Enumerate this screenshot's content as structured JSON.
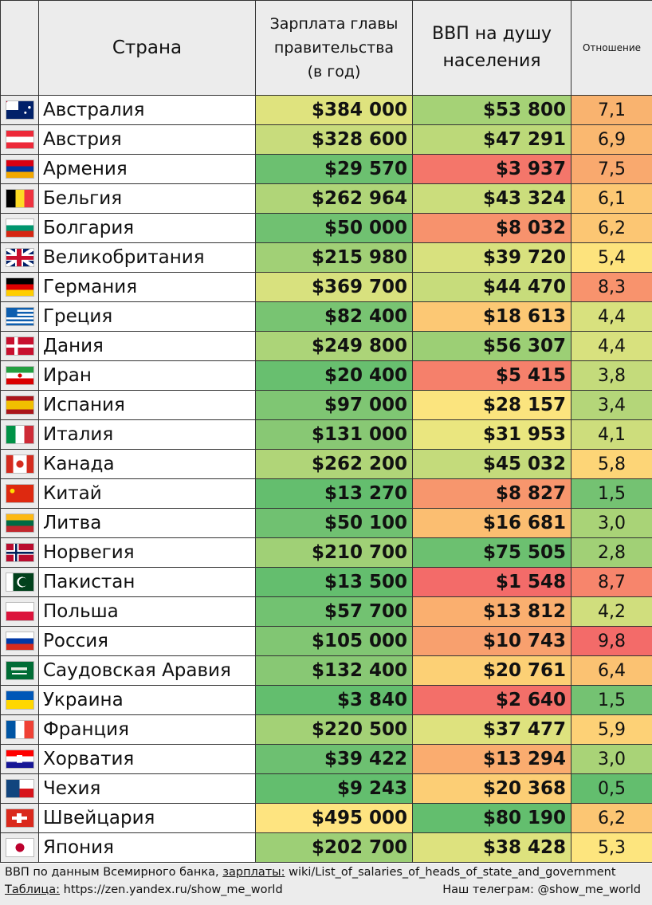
{
  "headers": {
    "country": "Страна",
    "salary": [
      "Зарплата главы",
      "правительства",
      "(в год)"
    ],
    "gdp": [
      "ВВП на душу",
      "населения"
    ],
    "ratio": "Отношение"
  },
  "rows": [
    {
      "country": "Австралия",
      "flag": "australia-flag-icon",
      "salary": "$384 000",
      "gdp": "$53 800",
      "ratio": "7,1",
      "salary_color": "#dfe37e",
      "gdp_color": "#a5d276",
      "ratio_color": "#f9b36f"
    },
    {
      "country": "Австрия",
      "flag": "austria-flag-icon",
      "salary": "$328 600",
      "gdp": "$47 291",
      "ratio": "6,9",
      "salary_color": "#c8dc7c",
      "gdp_color": "#bcd979",
      "ratio_color": "#fab870"
    },
    {
      "country": "Армения",
      "flag": "armenia-flag-icon",
      "salary": "$29 570",
      "gdp": "$3 937",
      "ratio": "7,5",
      "salary_color": "#6cc070",
      "gdp_color": "#f4766a",
      "ratio_color": "#f9a96e"
    },
    {
      "country": "Бельгия",
      "flag": "belgium-flag-icon",
      "salary": "$262 964",
      "gdp": "$43 324",
      "ratio": "6,1",
      "salary_color": "#b0d578",
      "gdp_color": "#cbdd7c",
      "ratio_color": "#fcc874"
    },
    {
      "country": "Болгария",
      "flag": "bulgaria-flag-icon",
      "salary": "$50 000",
      "gdp": "$8 032",
      "ratio": "6,2",
      "salary_color": "#70c171",
      "gdp_color": "#f7926d",
      "ratio_color": "#fcc673"
    },
    {
      "country": "Великобритания",
      "flag": "uk-flag-icon",
      "salary": "$215 980",
      "gdp": "$39 720",
      "ratio": "5,4",
      "salary_color": "#a1d076",
      "gdp_color": "#d8e17e",
      "ratio_color": "#fde37d"
    },
    {
      "country": "Германия",
      "flag": "germany-flag-icon",
      "salary": "$369 700",
      "gdp": "$44 470",
      "ratio": "8,3",
      "salary_color": "#d8e17e",
      "gdp_color": "#c7dc7b",
      "ratio_color": "#f8936d"
    },
    {
      "country": "Греция",
      "flag": "greece-flag-icon",
      "salary": "$82 400",
      "gdp": "$18 613",
      "ratio": "4,4",
      "salary_color": "#78c472",
      "gdp_color": "#fcc874",
      "ratio_color": "#d8e17e"
    },
    {
      "country": "Дания",
      "flag": "denmark-flag-icon",
      "salary": "$249 800",
      "gdp": "$56 307",
      "ratio": "4,4",
      "salary_color": "#acd478",
      "gdp_color": "#9ccf75",
      "ratio_color": "#d8e17e"
    },
    {
      "country": "Иран",
      "flag": "iran-flag-icon",
      "salary": "$20 400",
      "gdp": "$5 415",
      "ratio": "3,8",
      "salary_color": "#68bf6f",
      "gdp_color": "#f5806b",
      "ratio_color": "#c4db7b"
    },
    {
      "country": "Испания",
      "flag": "spain-flag-icon",
      "salary": "$97 000",
      "gdp": "$28 157",
      "ratio": "3,4",
      "salary_color": "#7fc673",
      "gdp_color": "#fbe47e",
      "ratio_color": "#b4d679"
    },
    {
      "country": "Италия",
      "flag": "italy-flag-icon",
      "salary": "$131 000",
      "gdp": "$31 953",
      "ratio": "4,1",
      "salary_color": "#88c874",
      "gdp_color": "#eae67f",
      "ratio_color": "#cddd7c"
    },
    {
      "country": "Канада",
      "flag": "canada-flag-icon",
      "salary": "$262 200",
      "gdp": "$45 032",
      "ratio": "5,8",
      "salary_color": "#b0d578",
      "gdp_color": "#c4db7b",
      "ratio_color": "#fdd577"
    },
    {
      "country": "Китай",
      "flag": "china-flag-icon",
      "salary": "$13 270",
      "gdp": "$8 827",
      "ratio": "1,5",
      "salary_color": "#64be6e",
      "gdp_color": "#f7966d",
      "ratio_color": "#74c272"
    },
    {
      "country": "Литва",
      "flag": "lithuania-flag-icon",
      "salary": "$50 100",
      "gdp": "$16 681",
      "ratio": "3,0",
      "salary_color": "#70c171",
      "gdp_color": "#fbbe71",
      "ratio_color": "#a9d377"
    },
    {
      "country": "Норвегия",
      "flag": "norway-flag-icon",
      "salary": "$210 700",
      "gdp": "$75 505",
      "ratio": "2,8",
      "salary_color": "#a0d076",
      "gdp_color": "#6cc070",
      "ratio_color": "#a1d076"
    },
    {
      "country": "Пакистан",
      "flag": "pakistan-flag-icon",
      "salary": "$13 500",
      "gdp": "$1 548",
      "ratio": "8,7",
      "salary_color": "#64be6e",
      "gdp_color": "#f36b69",
      "ratio_color": "#f7856c"
    },
    {
      "country": "Польша",
      "flag": "poland-flag-icon",
      "salary": "$57 700",
      "gdp": "$13 812",
      "ratio": "4,2",
      "salary_color": "#72c271",
      "gdp_color": "#faaf6f",
      "ratio_color": "#d0de7d"
    },
    {
      "country": "Россия",
      "flag": "russia-flag-icon",
      "salary": "$105 000",
      "gdp": "$10 743",
      "ratio": "9,8",
      "salary_color": "#81c673",
      "gdp_color": "#f8a06e",
      "ratio_color": "#f36b69"
    },
    {
      "country": "Саудовская Аравия",
      "flag": "saudi-arabia-flag-icon",
      "salary": "$132 400",
      "gdp": "$20 761",
      "ratio": "6,4",
      "salary_color": "#88c874",
      "gdp_color": "#fcd075",
      "ratio_color": "#fbc272"
    },
    {
      "country": "Украина",
      "flag": "ukraine-flag-icon",
      "salary": "$3 840",
      "gdp": "$2 640",
      "ratio": "1,5",
      "salary_color": "#63be6e",
      "gdp_color": "#f36f69",
      "ratio_color": "#74c272"
    },
    {
      "country": "Франция",
      "flag": "france-flag-icon",
      "salary": "$220 500",
      "gdp": "$37 477",
      "ratio": "5,9",
      "salary_color": "#a3d176",
      "gdp_color": "#dee27e",
      "ratio_color": "#fdd176"
    },
    {
      "country": "Хорватия",
      "flag": "croatia-flag-icon",
      "salary": "$39 422",
      "gdp": "$13 294",
      "ratio": "3,0",
      "salary_color": "#6dc071",
      "gdp_color": "#faac6f",
      "ratio_color": "#a9d377"
    },
    {
      "country": "Чехия",
      "flag": "czech-flag-icon",
      "salary": "$9 243",
      "gdp": "$20 368",
      "ratio": "0,5",
      "salary_color": "#63be6e",
      "gdp_color": "#fcce75",
      "ratio_color": "#63be6e"
    },
    {
      "country": "Швейцария",
      "flag": "switzerland-flag-icon",
      "salary": "$495 000",
      "gdp": "$80 190",
      "ratio": "6,2",
      "salary_color": "#fee480",
      "gdp_color": "#63be6e",
      "ratio_color": "#fcc673"
    },
    {
      "country": "Япония",
      "flag": "japan-flag-icon",
      "salary": "$202 700",
      "gdp": "$38 428",
      "ratio": "5,3",
      "salary_color": "#9dcf76",
      "gdp_color": "#dde27e",
      "ratio_color": "#fde57e"
    }
  ],
  "footer": {
    "line1_part1": "ВВП по данным Всемирного банка, ",
    "line1_link_label": "зарплаты:",
    "line1_part2": " wiki/List_of_salaries_of_heads_of_state_and_government",
    "line2_label": "Таблица:",
    "line2_value": " https://zen.yandex.ru/show_me_world",
    "line2_right": "Наш телеграм: @show_me_world"
  }
}
